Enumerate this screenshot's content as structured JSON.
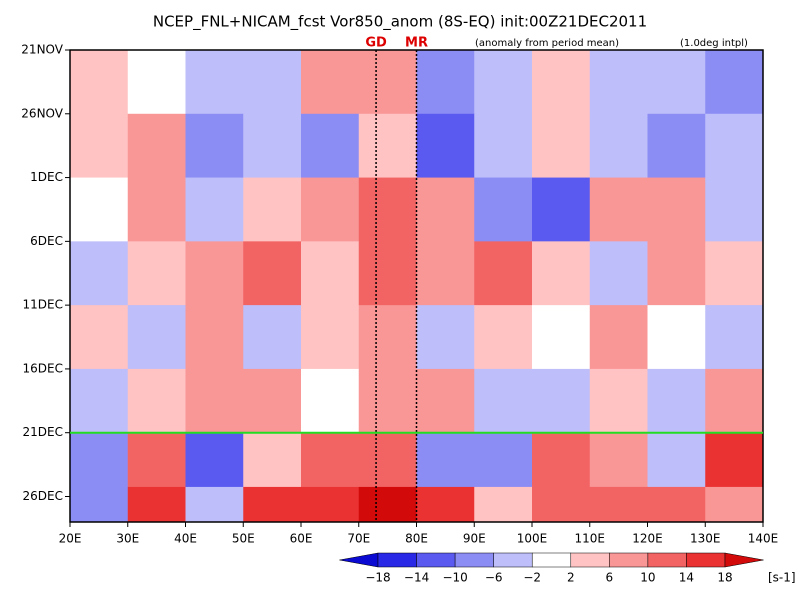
{
  "chart_data": {
    "type": "heatmap",
    "title": "NCEP_FNL+NICAM_fcst Vor850_anom (8S-EQ) init:00Z21DEC2011",
    "annotations": [
      "(anomaly from period mean)",
      "(1.0deg intpl)"
    ],
    "xlim": [
      20,
      140
    ],
    "xticks": [
      {
        "value": 20,
        "label": "20E"
      },
      {
        "value": 30,
        "label": "30E"
      },
      {
        "value": 40,
        "label": "40E"
      },
      {
        "value": 50,
        "label": "50E"
      },
      {
        "value": 60,
        "label": "60E"
      },
      {
        "value": 70,
        "label": "70E"
      },
      {
        "value": 80,
        "label": "80E"
      },
      {
        "value": 90,
        "label": "90E"
      },
      {
        "value": 100,
        "label": "100E"
      },
      {
        "value": 110,
        "label": "110E"
      },
      {
        "value": 120,
        "label": "120E"
      },
      {
        "value": 130,
        "label": "130E"
      },
      {
        "value": 140,
        "label": "140E"
      }
    ],
    "ylim": [
      0,
      37
    ],
    "yticks": [
      {
        "value": 0,
        "label": "21NOV"
      },
      {
        "value": 5,
        "label": "26NOV"
      },
      {
        "value": 10,
        "label": "1DEC"
      },
      {
        "value": 15,
        "label": "6DEC"
      },
      {
        "value": 20,
        "label": "11DEC"
      },
      {
        "value": 25,
        "label": "16DEC"
      },
      {
        "value": 30,
        "label": "21DEC"
      },
      {
        "value": 35,
        "label": "26DEC"
      }
    ],
    "init_line": 30,
    "init_color": "#22dd22",
    "markers": [
      {
        "label": "GD",
        "value": 73
      },
      {
        "label": "MR",
        "value": 80
      }
    ],
    "x": [
      25,
      35,
      45,
      55,
      65,
      75,
      85,
      95,
      105,
      115,
      125,
      135
    ],
    "y": [
      2.5,
      7.5,
      12.5,
      17.5,
      22.5,
      27.5,
      32.5,
      36
    ],
    "z": [
      [
        4,
        0,
        -6,
        -4,
        6,
        8,
        -8,
        -6,
        2,
        -4,
        -6,
        -8
      ],
      [
        4,
        8,
        -8,
        -6,
        -10,
        2,
        -14,
        -4,
        4,
        -6,
        -8,
        -6
      ],
      [
        -2,
        6,
        -4,
        4,
        6,
        10,
        6,
        -10,
        -14,
        6,
        8,
        -6
      ],
      [
        -4,
        2,
        8,
        10,
        4,
        12,
        6,
        12,
        4,
        -6,
        6,
        2
      ],
      [
        4,
        -4,
        6,
        -6,
        2,
        8,
        -4,
        4,
        -2,
        6,
        -2,
        -4
      ],
      [
        -6,
        4,
        8,
        6,
        -2,
        6,
        6,
        -6,
        -4,
        2,
        -6,
        6
      ],
      [
        -10,
        10,
        -12,
        4,
        10,
        12,
        -10,
        -8,
        10,
        8,
        -6,
        14
      ],
      [
        -8,
        14,
        -6,
        14,
        16,
        18,
        14,
        4,
        10,
        12,
        10,
        8
      ]
    ],
    "colorbar": {
      "levels": [
        {
          "value": -18,
          "label": "−18"
        },
        {
          "value": -14,
          "label": "−14"
        },
        {
          "value": -10,
          "label": "−10"
        },
        {
          "value": -6,
          "label": "−6"
        },
        {
          "value": -2,
          "label": "−2"
        },
        2,
        6,
        10,
        14,
        18
      ],
      "colors": [
        "#0a0ad2",
        "#2828e6",
        "#5a5af0",
        "#8c8cf5",
        "#bebefa",
        "#ffffff",
        "#ffc3c3",
        "#f99696",
        "#f26464",
        "#eb3232",
        "#d20a0a"
      ],
      "unit": "[s-1]"
    }
  }
}
